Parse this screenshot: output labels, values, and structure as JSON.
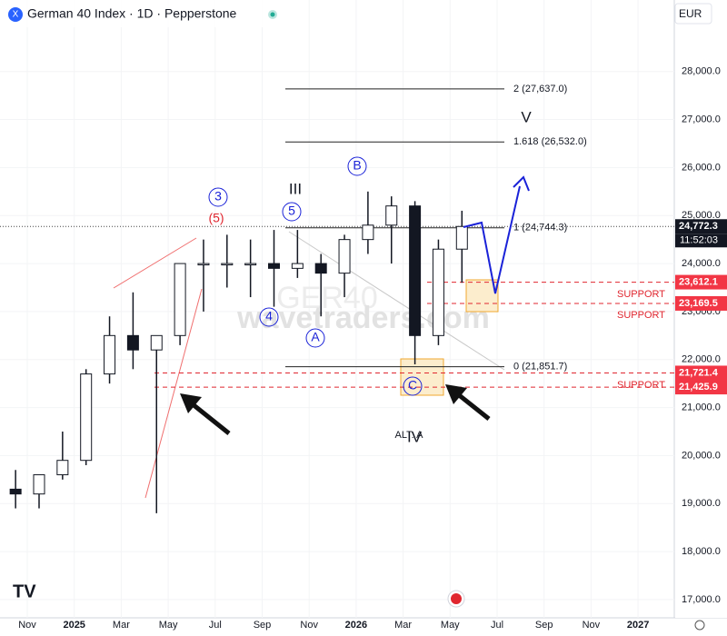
{
  "chart_data": {
    "type": "candlestick",
    "title": "German 40 Index · 1D · Pepperstone",
    "currency": "EUR",
    "color": "#131722",
    "x": [
      "2024-10",
      "2024-11",
      "2024-12",
      "2025-01",
      "2025-02",
      "2025-03",
      "2025-04",
      "2025-05",
      "2025-06",
      "2025-07",
      "2025-08",
      "2025-09",
      "2025-10",
      "2025-11",
      "2025-12",
      "2026-01",
      "2026-02",
      "2026-03",
      "2026-04",
      "2026-05"
    ],
    "open": [
      19300,
      19200,
      19600,
      19900,
      21700,
      22500,
      22200,
      22500,
      24000,
      24000,
      24000,
      24000,
      23900,
      24000,
      23800,
      24500,
      24800,
      25200,
      22500,
      24300
    ],
    "high": [
      19700,
      19600,
      20500,
      21800,
      22900,
      23400,
      22500,
      24000,
      24500,
      24600,
      24500,
      24700,
      24700,
      24200,
      24600,
      25500,
      25400,
      25300,
      24500,
      25100
    ],
    "low": [
      18900,
      18900,
      19500,
      19800,
      21500,
      21800,
      18800,
      22300,
      23000,
      23500,
      23300,
      23100,
      23700,
      22900,
      23300,
      24200,
      24000,
      21900,
      22300,
      23600
    ],
    "close": [
      19200,
      19600,
      19900,
      21700,
      22500,
      22200,
      22500,
      24000,
      24000,
      24000,
      24000,
      23900,
      24000,
      23800,
      24500,
      24800,
      25200,
      22500,
      24300,
      24772.3
    ],
    "ylim": [
      16620,
      29490
    ],
    "yticks": [
      {
        "value": 17000,
        "label": "17,000.0"
      },
      {
        "value": 18000,
        "label": "18,000.0"
      },
      {
        "value": 19000,
        "label": "19,000.0"
      },
      {
        "value": 20000,
        "label": "20,000.0"
      },
      {
        "value": 21000,
        "label": "21,000.0"
      },
      {
        "value": 22000,
        "label": "22,000.0"
      },
      {
        "value": 23000,
        "label": "23,000.0"
      },
      {
        "value": 24000,
        "label": "24,000.0"
      },
      {
        "value": 25000,
        "label": "25,000.0"
      },
      {
        "value": 26000,
        "label": "26,000.0"
      },
      {
        "value": 27000,
        "label": "27,000.0"
      },
      {
        "value": 28000,
        "label": "28,000.0"
      }
    ],
    "xticks": [
      {
        "value": "2024-11",
        "label": "Nov"
      },
      {
        "value": "2025-01",
        "label": "2025"
      },
      {
        "value": "2025-03",
        "label": "Mar"
      },
      {
        "value": "2025-05",
        "label": "May"
      },
      {
        "value": "2025-07",
        "label": "Jul"
      },
      {
        "value": "2025-09",
        "label": "Sep"
      },
      {
        "value": "2025-11",
        "label": "Nov"
      },
      {
        "value": "2026-01",
        "label": "2026"
      },
      {
        "value": "2026-03",
        "label": "Mar"
      },
      {
        "value": "2026-05",
        "label": "May"
      },
      {
        "value": "2026-07",
        "label": "Jul"
      },
      {
        "value": "2026-09",
        "label": "Sep"
      },
      {
        "value": "2026-11",
        "label": "Nov"
      },
      {
        "value": "2027-01",
        "label": "2027"
      }
    ],
    "last_price": {
      "value": 24772.3,
      "label": "24,772.3"
    },
    "countdown": "11:52:03",
    "fib_levels": [
      {
        "value": 27637,
        "label": "2 (27,637.0)"
      },
      {
        "value": 26532,
        "label": "1.618 (26,532.0)"
      },
      {
        "value": 24744.3,
        "label": "1 (24,744.3)"
      },
      {
        "value": 21851.7,
        "label": "0 (21,851.7)"
      }
    ],
    "supports": [
      {
        "value": 23612.1,
        "label": "23,612.1"
      },
      {
        "value": 23169.5,
        "label": "23,169.5"
      },
      {
        "value": 21721.4,
        "label": "21,721.4"
      },
      {
        "value": 21425.9,
        "label": "21,425.9"
      }
    ],
    "annotations": [
      "SUPPORT",
      "SUPPORT",
      "SUPPORT"
    ],
    "waves": [
      "3",
      "(5)",
      "III",
      "5",
      "4",
      "A",
      "B",
      "C",
      "IV",
      "V"
    ],
    "alt_label": "ALT: A",
    "watermark": "wavetraders.com",
    "watermark_symbol": "GER40"
  }
}
